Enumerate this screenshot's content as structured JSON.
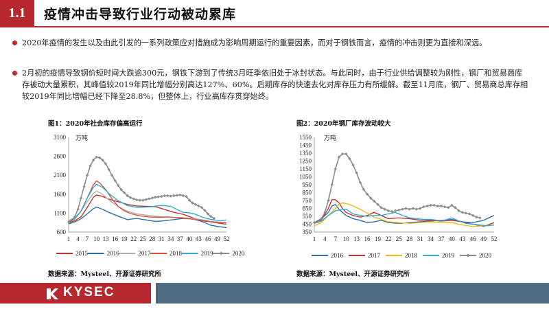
{
  "header": {
    "number": "1.1",
    "title": "疫情冲击导致行业行动被动累库"
  },
  "bullets": [
    "2020年疫情的发生以及由此引发的一系列政策应对措施成为影响周期运行的重要因素，而对于钢铁而言，疫情的冲击则更为直接和深远。",
    "2月初的疫情导致钢价短时间大跌逾300元，钢铁下游到了传统3月旺季依旧处于冰封状态。与此同时，由于行业供给调整较为刚性，钢厂和贸易商库存被动大量累积，其峰值较2019年同比增幅分别高达127%、60%。后期库存的快速去化对库存压力有所缓解。截至11月底，钢厂、贸易商总库存相较2019年同比增幅已经下降至28.8%，但整体上，行业高库存贯穿始终。"
  ],
  "footer": {
    "logo_text": "KYSEC"
  },
  "colors": {
    "accent": "#b7282e",
    "footer_blue": "#4f6b84"
  },
  "chart_data": [
    {
      "type": "line",
      "title": "图1：2020年社会库存偏高运行",
      "unit": "万吨",
      "source": "数据来源：Mysteel、开源证券研究所",
      "xticks": [
        1,
        4,
        7,
        10,
        13,
        16,
        19,
        22,
        25,
        28,
        31,
        34,
        37,
        40,
        43,
        46,
        49,
        52
      ],
      "ylim": [
        600,
        3100
      ],
      "yticks": [
        600,
        1100,
        1600,
        2100,
        2600,
        3100
      ],
      "legend_position": "bottom",
      "series": [
        {
          "name": "2015",
          "color": "#c8302f",
          "marker": "none",
          "x": [
            1,
            3,
            5,
            7,
            9,
            10,
            12,
            14,
            17,
            20,
            23,
            26,
            29,
            32,
            35,
            38,
            41,
            44,
            47,
            50,
            52
          ],
          "y": [
            850,
            900,
            1000,
            1250,
            1520,
            1580,
            1540,
            1470,
            1400,
            1330,
            1290,
            1280,
            1270,
            1200,
            1120,
            1070,
            980,
            900,
            870,
            830,
            810
          ]
        },
        {
          "name": "2016",
          "color": "#2e6fae",
          "marker": "none",
          "x": [
            1,
            3,
            5,
            7,
            9,
            10,
            12,
            14,
            17,
            20,
            23,
            26,
            29,
            32,
            35,
            38,
            41,
            44,
            47,
            50,
            52
          ],
          "y": [
            820,
            870,
            950,
            1080,
            1220,
            1260,
            1200,
            1120,
            1020,
            930,
            960,
            920,
            880,
            900,
            930,
            960,
            950,
            880,
            780,
            740,
            720
          ]
        },
        {
          "name": "2017",
          "color": "#b0b0b0",
          "marker": "none",
          "x": [
            1,
            3,
            5,
            7,
            9,
            10,
            12,
            14,
            17,
            20,
            23,
            26,
            29,
            32,
            35,
            38,
            41,
            44,
            47,
            50,
            52
          ],
          "y": [
            900,
            980,
            1150,
            1400,
            1620,
            1680,
            1600,
            1450,
            1270,
            1150,
            1080,
            1050,
            1020,
            1000,
            990,
            980,
            960,
            930,
            880,
            860,
            850
          ]
        },
        {
          "name": "2018",
          "color": "#d9503a",
          "marker": "none",
          "x": [
            1,
            3,
            5,
            7,
            9,
            10,
            11,
            13,
            15,
            17,
            19,
            21,
            24,
            27,
            30,
            33,
            36,
            39,
            42,
            45,
            48,
            50,
            52
          ],
          "y": [
            860,
            950,
            1150,
            1500,
            1850,
            1950,
            1900,
            1720,
            1480,
            1280,
            1160,
            1090,
            1030,
            1000,
            990,
            1000,
            980,
            960,
            930,
            900,
            860,
            850,
            850
          ]
        },
        {
          "name": "2019",
          "color": "#2eaad8",
          "marker": "none",
          "x": [
            1,
            3,
            5,
            7,
            9,
            10,
            12,
            14,
            17,
            20,
            23,
            26,
            28,
            30,
            32,
            34,
            36,
            38,
            40,
            42,
            44,
            46,
            48,
            50,
            52
          ],
          "y": [
            880,
            950,
            1150,
            1500,
            1780,
            1860,
            1780,
            1620,
            1430,
            1300,
            1250,
            1260,
            1270,
            1300,
            1300,
            1280,
            1200,
            1120,
            1110,
            1070,
            1000,
            950,
            920,
            900,
            920
          ]
        },
        {
          "name": "2020",
          "color": "#8c8c8c",
          "marker": "diamond",
          "x": [
            1,
            2,
            3,
            4,
            5,
            6,
            7,
            8,
            9,
            10,
            11,
            12,
            13,
            14,
            15,
            16,
            17,
            18,
            19,
            20,
            21,
            22,
            23,
            24,
            25,
            26,
            27,
            28,
            29,
            30,
            31,
            32,
            33,
            34,
            35,
            36,
            37,
            38,
            39,
            40,
            41,
            42,
            43,
            44,
            45,
            46,
            47,
            48
          ],
          "y": [
            870,
            920,
            1000,
            1200,
            1500,
            1800,
            2100,
            2350,
            2500,
            2580,
            2560,
            2500,
            2400,
            2250,
            2100,
            1960,
            1830,
            1720,
            1640,
            1560,
            1510,
            1480,
            1450,
            1440,
            1440,
            1460,
            1480,
            1500,
            1520,
            1530,
            1540,
            1560,
            1560,
            1550,
            1560,
            1570,
            1580,
            1560,
            1540,
            1440,
            1370,
            1330,
            1290,
            1250,
            1170,
            1080,
            1010,
            960
          ]
        }
      ]
    },
    {
      "type": "line",
      "title": "图2：2020年钢厂库存波动较大",
      "unit": "万吨",
      "source": "数据来源：Mysteel、开源证券研究所",
      "xticks": [
        1,
        4,
        7,
        10,
        13,
        16,
        19,
        22,
        25,
        28,
        31,
        34,
        37,
        40,
        43,
        46,
        49,
        52
      ],
      "ylim": [
        350,
        1550
      ],
      "yticks": [
        350,
        450,
        550,
        650,
        750,
        850,
        950,
        1050,
        1150,
        1250,
        1350,
        1450,
        1550
      ],
      "legend_position": "bottom",
      "series": [
        {
          "name": "2016",
          "color": "#2e6fae",
          "marker": "none",
          "x": [
            1,
            3,
            5,
            6,
            7,
            8,
            9,
            10,
            12,
            14,
            16,
            18,
            20,
            22,
            25,
            28,
            31,
            34,
            37,
            40,
            43,
            46,
            49,
            52
          ],
          "y": [
            470,
            520,
            600,
            680,
            700,
            640,
            600,
            560,
            520,
            500,
            470,
            480,
            500,
            470,
            460,
            470,
            480,
            490,
            500,
            510,
            480,
            470,
            500,
            560
          ]
        },
        {
          "name": "2017",
          "color": "#c8302f",
          "marker": "none",
          "x": [
            1,
            3,
            5,
            6,
            7,
            8,
            9,
            10,
            12,
            14,
            16,
            18,
            20,
            22,
            25,
            28,
            31,
            34,
            37,
            40,
            43,
            46,
            49,
            52
          ],
          "y": [
            460,
            500,
            650,
            760,
            760,
            720,
            650,
            600,
            560,
            540,
            560,
            600,
            560,
            520,
            530,
            520,
            500,
            500,
            490,
            500,
            480,
            450,
            420,
            470
          ]
        },
        {
          "name": "2018",
          "color": "#f0b81a",
          "marker": "none",
          "x": [
            1,
            3,
            5,
            7,
            8,
            9,
            10,
            11,
            12,
            14,
            16,
            18,
            20,
            22,
            25,
            28,
            31,
            34,
            37,
            40,
            43,
            46,
            49,
            52
          ],
          "y": [
            430,
            470,
            560,
            650,
            700,
            720,
            710,
            700,
            680,
            640,
            590,
            540,
            510,
            480,
            470,
            460,
            470,
            480,
            470,
            470,
            440,
            420,
            430,
            440
          ]
        },
        {
          "name": "2019",
          "color": "#2eaad8",
          "marker": "none",
          "x": [
            1,
            3,
            5,
            7,
            9,
            10,
            11,
            12,
            14,
            16,
            18,
            20,
            22,
            24,
            26,
            28,
            30,
            32,
            34,
            36,
            38,
            40,
            42,
            44,
            46,
            48,
            50,
            52
          ],
          "y": [
            460,
            490,
            560,
            620,
            640,
            640,
            610,
            580,
            560,
            550,
            560,
            560,
            580,
            600,
            560,
            530,
            520,
            510,
            510,
            500,
            500,
            530,
            490,
            460,
            450,
            440,
            430,
            440
          ]
        },
        {
          "name": "2020",
          "color": "#8c8c8c",
          "marker": "diamond",
          "x": [
            1,
            2,
            3,
            4,
            5,
            6,
            7,
            8,
            9,
            10,
            11,
            12,
            13,
            14,
            15,
            16,
            17,
            18,
            19,
            20,
            21,
            22,
            23,
            24,
            25,
            26,
            27,
            28,
            29,
            30,
            31,
            32,
            33,
            34,
            35,
            36,
            37,
            38,
            39,
            40,
            41,
            42,
            43,
            44,
            45,
            46,
            47,
            48
          ],
          "y": [
            470,
            480,
            520,
            600,
            750,
            950,
            1150,
            1300,
            1340,
            1340,
            1280,
            1200,
            1100,
            980,
            890,
            830,
            780,
            740,
            700,
            660,
            640,
            620,
            610,
            620,
            630,
            640,
            650,
            640,
            650,
            640,
            650,
            670,
            680,
            690,
            690,
            680,
            680,
            670,
            660,
            690,
            660,
            620,
            600,
            590,
            580,
            560,
            540,
            530
          ]
        }
      ]
    }
  ]
}
